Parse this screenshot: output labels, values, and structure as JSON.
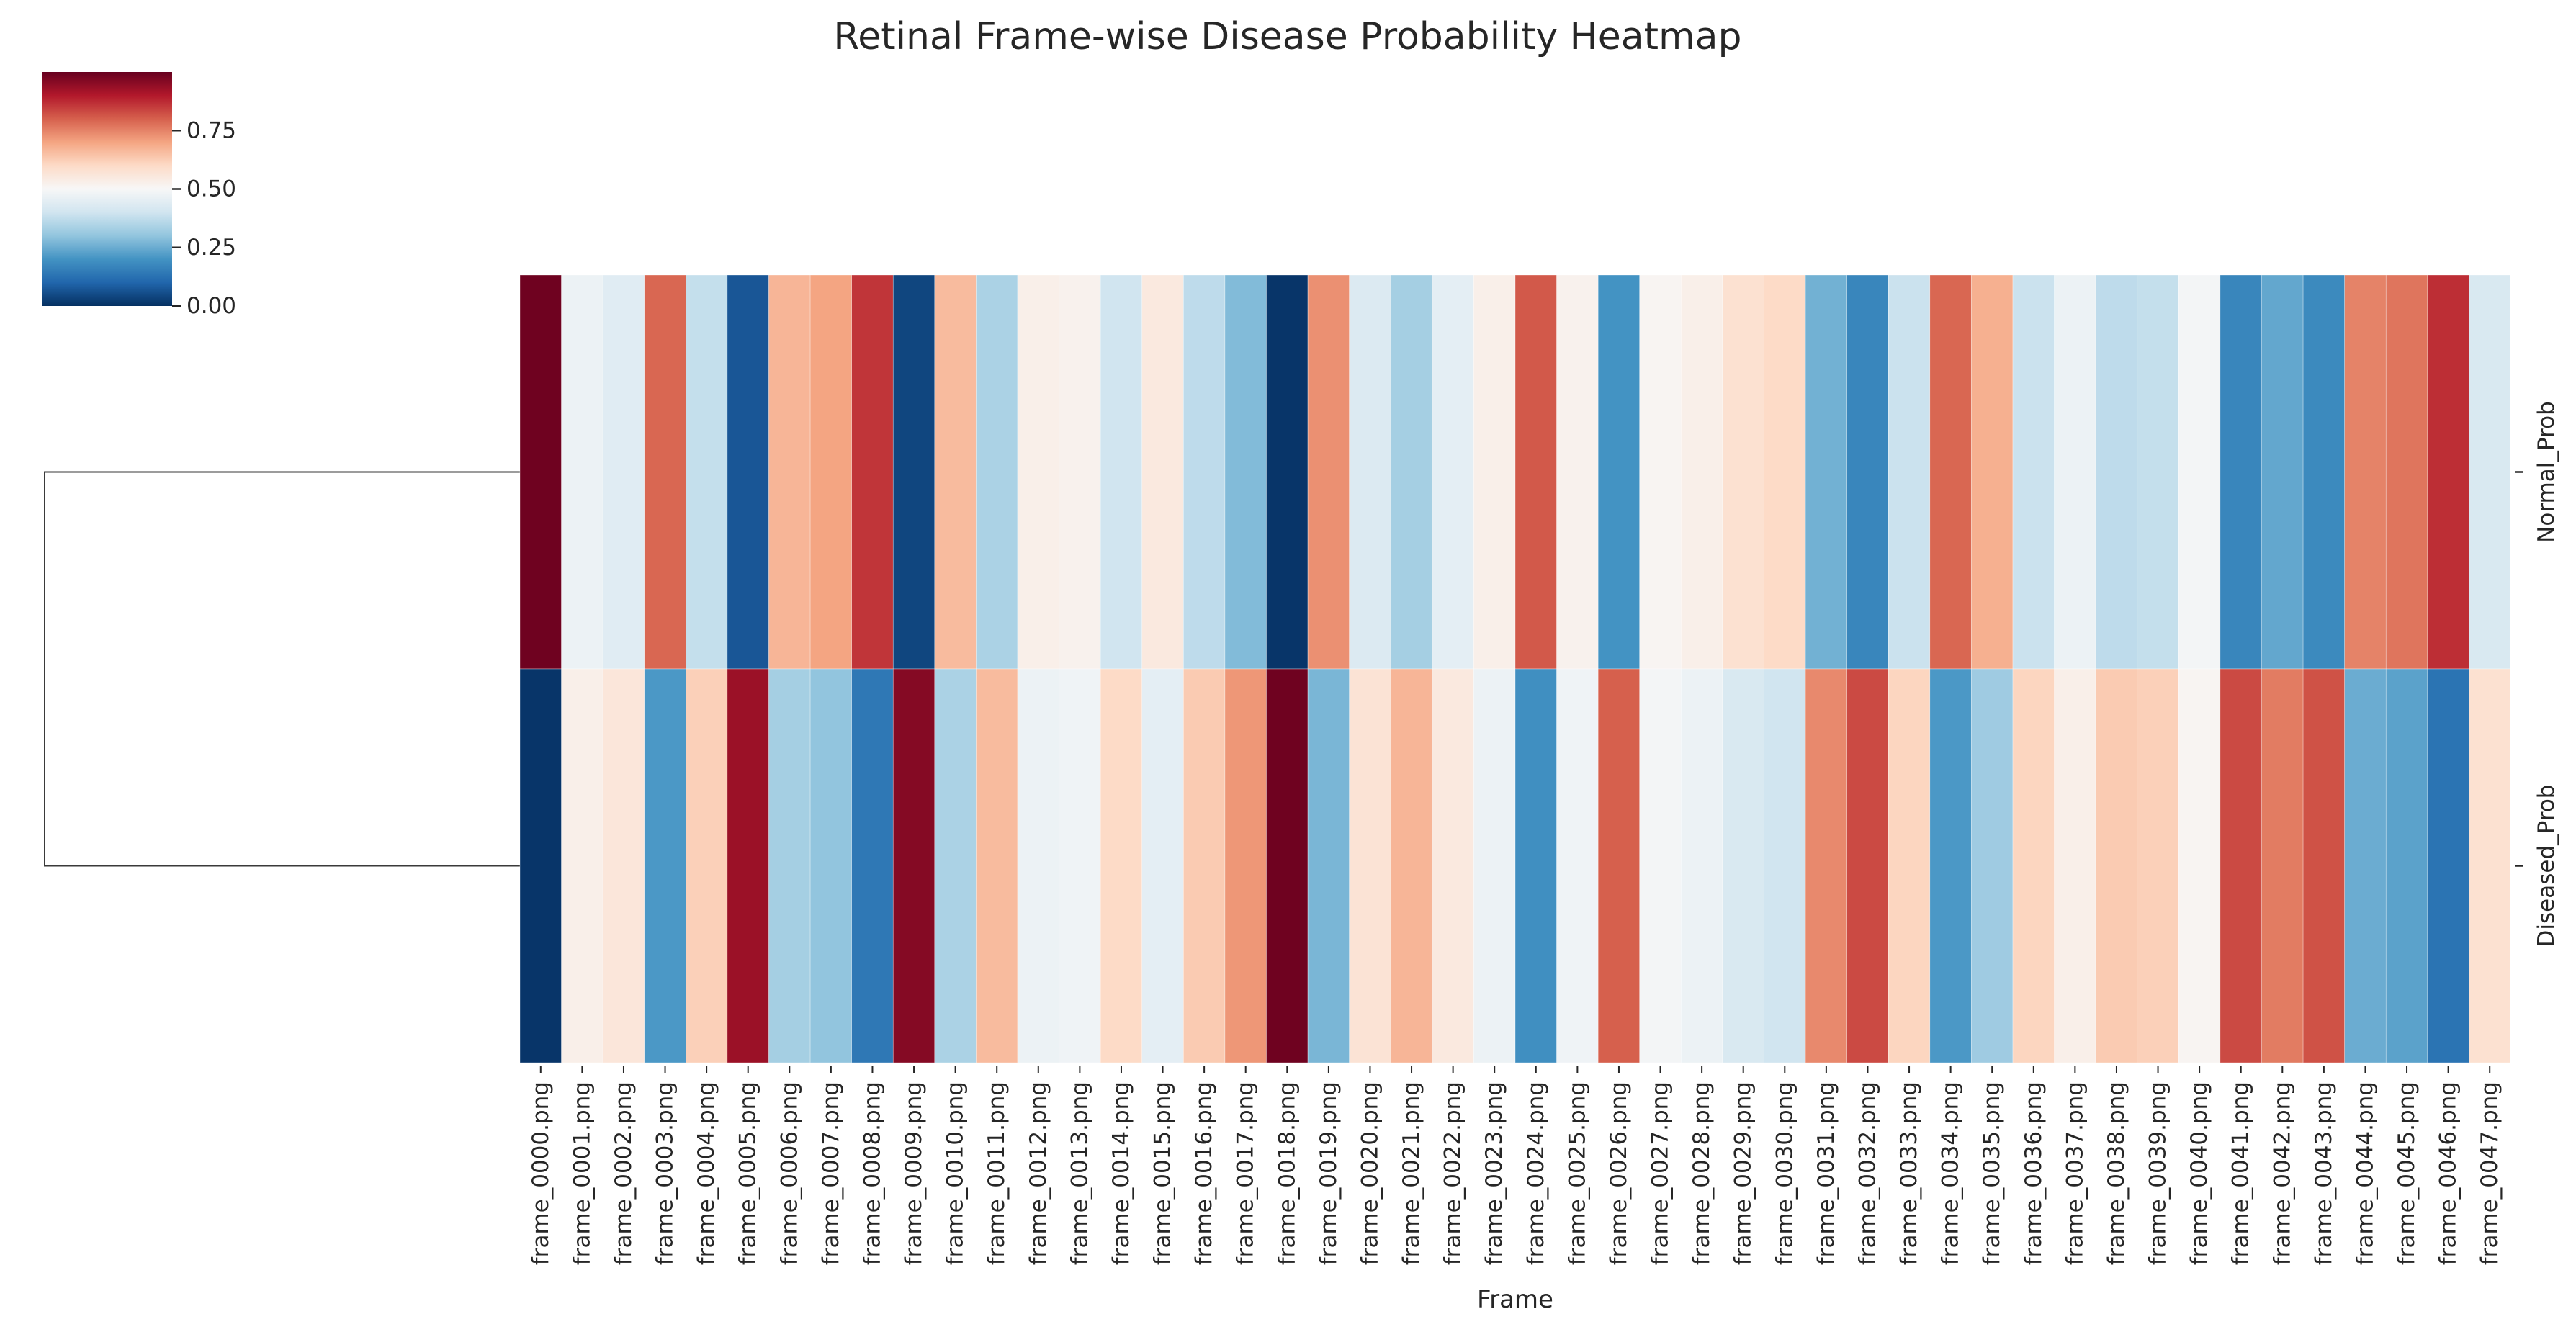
{
  "chart_data": {
    "type": "heatmap",
    "title": "Retinal Frame-wise Disease Probability Heatmap",
    "xlabel": "Frame",
    "ylabel": "",
    "columns": [
      "frame_0000.png",
      "frame_0001.png",
      "frame_0002.png",
      "frame_0003.png",
      "frame_0004.png",
      "frame_0005.png",
      "frame_0006.png",
      "frame_0007.png",
      "frame_0008.png",
      "frame_0009.png",
      "frame_0010.png",
      "frame_0011.png",
      "frame_0012.png",
      "frame_0013.png",
      "frame_0014.png",
      "frame_0015.png",
      "frame_0016.png",
      "frame_0017.png",
      "frame_0018.png",
      "frame_0019.png",
      "frame_0020.png",
      "frame_0021.png",
      "frame_0022.png",
      "frame_0023.png",
      "frame_0024.png",
      "frame_0025.png",
      "frame_0026.png",
      "frame_0027.png",
      "frame_0028.png",
      "frame_0029.png",
      "frame_0030.png",
      "frame_0031.png",
      "frame_0032.png",
      "frame_0033.png",
      "frame_0034.png",
      "frame_0035.png",
      "frame_0036.png",
      "frame_0037.png",
      "frame_0038.png",
      "frame_0039.png",
      "frame_0040.png",
      "frame_0041.png",
      "frame_0042.png",
      "frame_0043.png",
      "frame_0044.png",
      "frame_0045.png",
      "frame_0046.png",
      "frame_0047.png"
    ],
    "rows": [
      "Normal_Prob",
      "Diseased_Prob"
    ],
    "values": [
      [
        0.99,
        0.47,
        0.44,
        0.79,
        0.38,
        0.07,
        0.67,
        0.7,
        0.86,
        0.04,
        0.66,
        0.34,
        0.53,
        0.52,
        0.4,
        0.55,
        0.37,
        0.28,
        0.01,
        0.73,
        0.43,
        0.33,
        0.45,
        0.53,
        0.81,
        0.52,
        0.2,
        0.51,
        0.53,
        0.58,
        0.6,
        0.26,
        0.17,
        0.39,
        0.79,
        0.68,
        0.39,
        0.47,
        0.37,
        0.38,
        0.49,
        0.17,
        0.24,
        0.18,
        0.75,
        0.77,
        0.87,
        0.42
      ],
      [
        0.01,
        0.53,
        0.56,
        0.21,
        0.62,
        0.93,
        0.33,
        0.3,
        0.14,
        0.96,
        0.34,
        0.66,
        0.47,
        0.48,
        0.6,
        0.45,
        0.63,
        0.72,
        0.99,
        0.27,
        0.57,
        0.67,
        0.55,
        0.47,
        0.19,
        0.48,
        0.8,
        0.49,
        0.47,
        0.42,
        0.4,
        0.74,
        0.83,
        0.61,
        0.21,
        0.32,
        0.61,
        0.53,
        0.63,
        0.62,
        0.51,
        0.83,
        0.76,
        0.82,
        0.25,
        0.23,
        0.13,
        0.58
      ]
    ],
    "colormap": "RdBu_r",
    "colorbar": {
      "vmin": 0.0,
      "vmax": 1.0,
      "ticks": [
        "0.00",
        "0.25",
        "0.50",
        "0.75"
      ]
    },
    "row_dendrogram": true,
    "legend": "colorbar top-left",
    "grid": false
  }
}
